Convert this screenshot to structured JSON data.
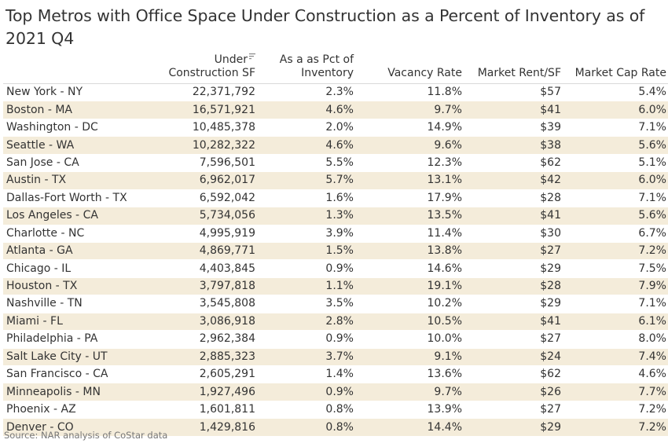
{
  "title": "Top Metros with Office Space Under Construction as a Percent of Inventory as of 2021 Q4",
  "source": "Source: NAR analysis of CoStar data",
  "chart_data": {
    "type": "table",
    "title": "Top Metros with Office Space Under Construction as a Percent of Inventory as of 2021 Q4",
    "columns": [
      {
        "key": "metro",
        "label_lines": [
          "",
          ""
        ]
      },
      {
        "key": "under_construction_sf",
        "label_lines": [
          "Under",
          "Construction SF"
        ]
      },
      {
        "key": "pct_inventory",
        "label_lines": [
          "As a as Pct of",
          "Inventory"
        ]
      },
      {
        "key": "vacancy_rate",
        "label_lines": [
          "",
          "Vacancy Rate"
        ]
      },
      {
        "key": "market_rent_sf",
        "label_lines": [
          "",
          "Market Rent/SF"
        ]
      },
      {
        "key": "market_cap_rate",
        "label_lines": [
          "",
          "Market Cap Rate"
        ]
      }
    ],
    "rows": [
      [
        "New York - NY",
        "22,371,792",
        "2.3%",
        "11.8%",
        "$57",
        "5.4%"
      ],
      [
        "Boston - MA",
        "16,571,921",
        "4.6%",
        "9.7%",
        "$41",
        "6.0%"
      ],
      [
        "Washington - DC",
        "10,485,378",
        "2.0%",
        "14.9%",
        "$39",
        "7.1%"
      ],
      [
        "Seattle - WA",
        "10,282,322",
        "4.6%",
        "9.6%",
        "$38",
        "5.6%"
      ],
      [
        "San Jose - CA",
        "7,596,501",
        "5.5%",
        "12.3%",
        "$62",
        "5.1%"
      ],
      [
        "Austin - TX",
        "6,962,017",
        "5.7%",
        "13.1%",
        "$42",
        "6.0%"
      ],
      [
        "Dallas-Fort Worth - TX",
        "6,592,042",
        "1.6%",
        "17.9%",
        "$28",
        "7.1%"
      ],
      [
        "Los Angeles - CA",
        "5,734,056",
        "1.3%",
        "13.5%",
        "$41",
        "5.6%"
      ],
      [
        "Charlotte - NC",
        "4,995,919",
        "3.9%",
        "11.4%",
        "$30",
        "6.7%"
      ],
      [
        "Atlanta - GA",
        "4,869,771",
        "1.5%",
        "13.8%",
        "$27",
        "7.2%"
      ],
      [
        "Chicago - IL",
        "4,403,845",
        "0.9%",
        "14.6%",
        "$29",
        "7.5%"
      ],
      [
        "Houston - TX",
        "3,797,818",
        "1.1%",
        "19.1%",
        "$28",
        "7.9%"
      ],
      [
        "Nashville - TN",
        "3,545,808",
        "3.5%",
        "10.2%",
        "$29",
        "7.1%"
      ],
      [
        "Miami - FL",
        "3,086,918",
        "2.8%",
        "10.5%",
        "$41",
        "6.1%"
      ],
      [
        "Philadelphia - PA",
        "2,962,384",
        "0.9%",
        "10.0%",
        "$27",
        "8.0%"
      ],
      [
        "Salt Lake City - UT",
        "2,885,323",
        "3.7%",
        "9.1%",
        "$24",
        "7.4%"
      ],
      [
        "San Francisco - CA",
        "2,605,291",
        "1.4%",
        "13.6%",
        "$62",
        "4.6%"
      ],
      [
        "Minneapolis - MN",
        "1,927,496",
        "0.9%",
        "9.7%",
        "$26",
        "7.7%"
      ],
      [
        "Phoenix - AZ",
        "1,601,811",
        "0.8%",
        "13.9%",
        "$27",
        "7.2%"
      ],
      [
        "Denver - CO",
        "1,429,816",
        "0.8%",
        "14.4%",
        "$29",
        "7.2%"
      ]
    ],
    "sorted_column": "under_construction_sf",
    "sort_icon": "sort-descending-icon",
    "colors": {
      "band": "#f4ecda",
      "text": "#333333",
      "source_text": "#777777"
    }
  }
}
